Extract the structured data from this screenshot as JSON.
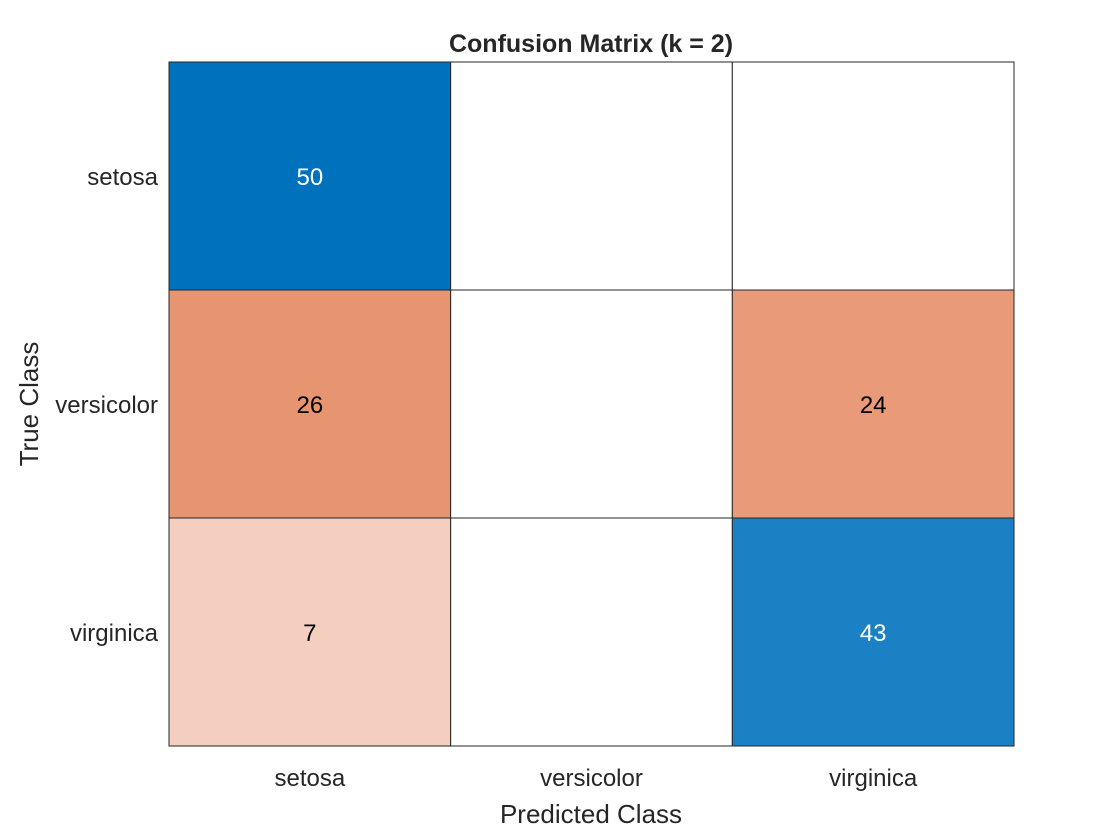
{
  "chart_data": {
    "type": "heatmap",
    "title": "Confusion Matrix (k = 2)",
    "xlabel": "Predicted Class",
    "ylabel": "True Class",
    "x_categories": [
      "setosa",
      "versicolor",
      "virginica"
    ],
    "y_categories": [
      "setosa",
      "versicolor",
      "virginica"
    ],
    "values": [
      [
        50,
        0,
        0
      ],
      [
        26,
        0,
        24
      ],
      [
        7,
        0,
        43
      ]
    ],
    "cell_labels": [
      [
        "50",
        "",
        ""
      ],
      [
        "26",
        "",
        "24"
      ],
      [
        "7",
        "",
        "43"
      ]
    ],
    "colors": {
      "diagonal": "#0072BD",
      "off_diagonal": "#D95319",
      "empty": "#FFFFFF",
      "grid": "#262626"
    },
    "grid": true,
    "legend": "none"
  }
}
